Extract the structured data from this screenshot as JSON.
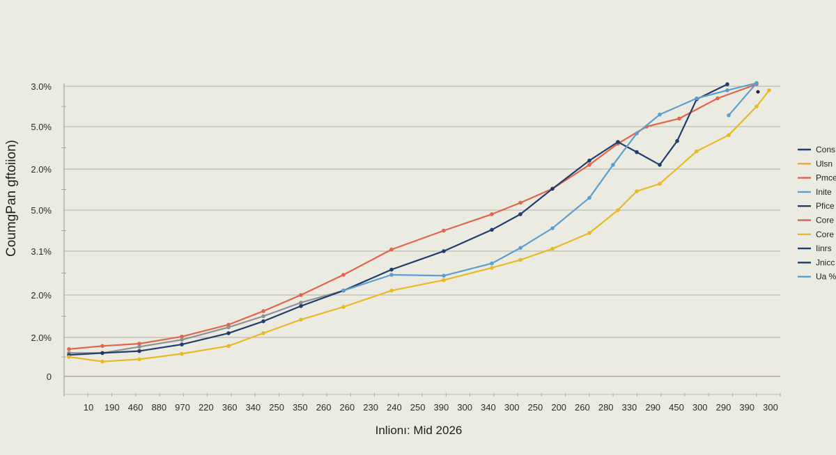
{
  "chart_data": {
    "type": "line",
    "title": "",
    "xlabel": "Inlionı: Mid 2026",
    "ylabel": "CoumgPan gftoiion)",
    "y_tick_labels": [
      "0",
      "2.0%",
      "2.0%",
      "3.1%",
      "5.0%",
      "2.0%",
      "5.0%",
      "3.0%"
    ],
    "x_tick_labels": [
      "10",
      "190",
      "460",
      "880",
      "970",
      "220",
      "360",
      "340",
      "250",
      "350",
      "260",
      "260",
      "230",
      "240",
      "250",
      "390",
      "300",
      "340",
      "300",
      "250",
      "200",
      "260",
      "280",
      "330",
      "290",
      "450",
      "300",
      "290",
      "390",
      "300"
    ],
    "grid": true,
    "legend_position": "right",
    "legend": [
      {
        "label": "Cons",
        "color": "#1f3d6e"
      },
      {
        "label": "Ulsn",
        "color": "#f0a04b"
      },
      {
        "label": "Pmce",
        "color": "#e0654a"
      },
      {
        "label": "Inite",
        "color": "#5a9fd0"
      },
      {
        "label": "Pfice",
        "color": "#1f3d6e"
      },
      {
        "label": "Core",
        "color": "#e0654a"
      },
      {
        "label": "Core",
        "color": "#e8b923"
      },
      {
        "label": "Iinrs",
        "color": "#1f3d6e"
      },
      {
        "label": "Jnicc",
        "color": "#1a3a5c"
      },
      {
        "label": "Ua %",
        "color": "#5a9fd0"
      }
    ],
    "y_unit_note": "values are in gridline units: 0 = baseline (0), 7 = top gridline (3.0%)",
    "series": [
      {
        "name": "Pmce",
        "color": "#e0654a",
        "points": [
          [
            99,
            0.7
          ],
          [
            147,
            0.78
          ],
          [
            200,
            0.84
          ],
          [
            261,
            1.02
          ],
          [
            328,
            1.3
          ],
          [
            378,
            1.62
          ],
          [
            432,
            2.0
          ],
          [
            493,
            2.46
          ],
          [
            562,
            3.04
          ],
          [
            637,
            3.5
          ],
          [
            706,
            3.9
          ],
          [
            747,
            4.18
          ],
          [
            793,
            4.52
          ],
          [
            846,
            5.1
          ],
          [
            887,
            5.6
          ],
          [
            928,
            6.0
          ],
          [
            975,
            6.2
          ],
          [
            1030,
            6.7
          ],
          [
            1086,
            7.05
          ]
        ]
      },
      {
        "name": "Pfice-gray",
        "color": "#8f8f96",
        "points": [
          [
            99,
            0.6
          ],
          [
            147,
            0.6
          ],
          [
            200,
            0.76
          ],
          [
            261,
            0.94
          ],
          [
            328,
            1.24
          ],
          [
            378,
            1.5
          ],
          [
            432,
            1.82
          ],
          [
            493,
            2.1
          ]
        ]
      },
      {
        "name": "Cons",
        "color": "#1f3d6e",
        "points": [
          [
            99,
            0.55
          ],
          [
            147,
            0.6
          ],
          [
            200,
            0.65
          ],
          [
            261,
            0.82
          ],
          [
            328,
            1.1
          ],
          [
            378,
            1.38
          ],
          [
            432,
            1.74
          ],
          [
            493,
            2.1
          ],
          [
            562,
            2.58
          ],
          [
            637,
            3.0
          ],
          [
            706,
            3.52
          ],
          [
            747,
            3.9
          ],
          [
            793,
            4.52
          ],
          [
            846,
            5.2
          ],
          [
            887,
            5.64
          ],
          [
            914,
            5.4
          ],
          [
            947,
            5.1
          ],
          [
            972,
            5.66
          ],
          [
            1000,
            6.68
          ],
          [
            1044,
            7.05
          ]
        ]
      },
      {
        "name": "Ua %",
        "color": "#5a9fd0",
        "points": [
          [
            493,
            2.1
          ],
          [
            562,
            2.46
          ],
          [
            637,
            2.44
          ],
          [
            706,
            2.72
          ],
          [
            747,
            3.08
          ],
          [
            793,
            3.56
          ],
          [
            846,
            4.3
          ],
          [
            880,
            5.1
          ],
          [
            914,
            5.84
          ],
          [
            947,
            6.3
          ],
          [
            1000,
            6.7
          ],
          [
            1044,
            6.9
          ],
          [
            1086,
            7.08
          ]
        ]
      },
      {
        "name": "Ua % tail",
        "color": "#5a9fd0",
        "points": [
          [
            1046,
            6.28
          ],
          [
            1086,
            7.08
          ]
        ]
      },
      {
        "name": "Core",
        "color": "#e8b923",
        "points": [
          [
            99,
            0.5
          ],
          [
            147,
            0.38
          ],
          [
            200,
            0.44
          ],
          [
            261,
            0.58
          ],
          [
            328,
            0.78
          ],
          [
            378,
            1.1
          ],
          [
            432,
            1.42
          ],
          [
            493,
            1.72
          ],
          [
            562,
            2.1
          ],
          [
            637,
            2.34
          ],
          [
            706,
            2.62
          ],
          [
            747,
            2.8
          ],
          [
            793,
            3.06
          ],
          [
            846,
            3.44
          ],
          [
            887,
            4.0
          ],
          [
            914,
            4.46
          ],
          [
            947,
            4.64
          ],
          [
            1000,
            5.42
          ],
          [
            1046,
            5.8
          ],
          [
            1086,
            6.5
          ],
          [
            1104,
            6.9
          ]
        ]
      }
    ],
    "ylim": [
      0,
      7
    ]
  }
}
